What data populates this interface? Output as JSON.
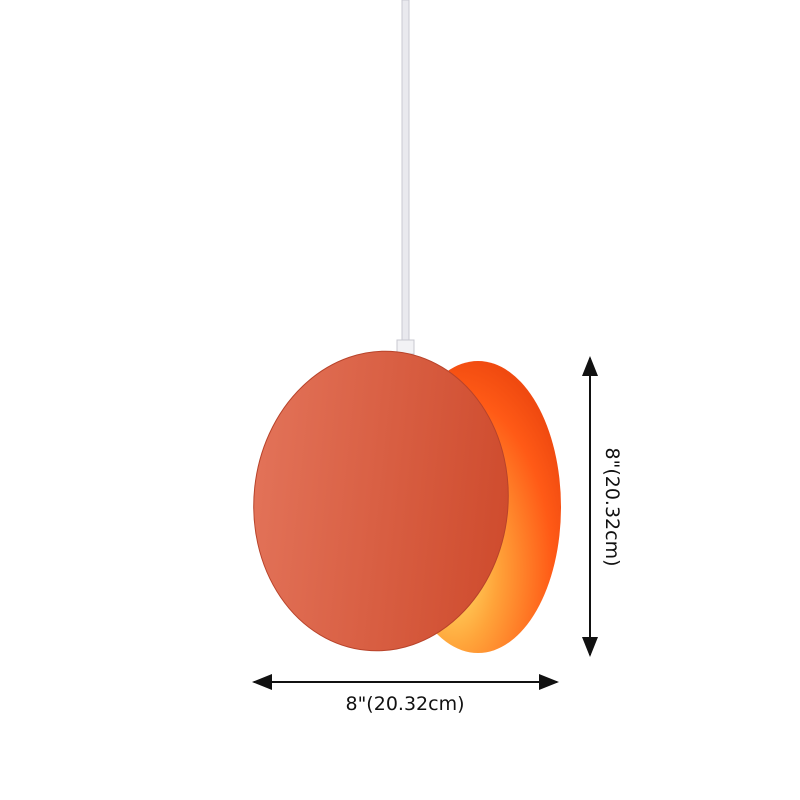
{
  "product": {
    "description_visible": "pendant lamp",
    "colors": {
      "shade_front": "#d95a3c",
      "shade_inner": "#ff6a1a",
      "glow": "#ffd24a",
      "cord": "#eeeef2"
    }
  },
  "dimensions": {
    "width_label": "8\"(20.32cm)",
    "height_label": "8\"(20.32cm)"
  }
}
